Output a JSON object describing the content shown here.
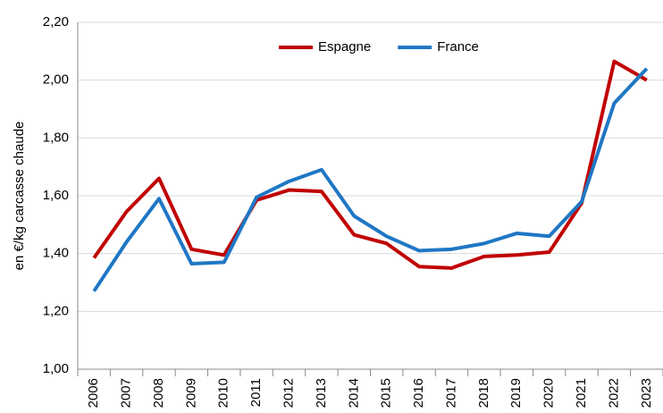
{
  "chart_data": {
    "type": "line",
    "y_label": "en €/kg carcasse chaude",
    "categories": [
      "2006",
      "2007",
      "2008",
      "2009",
      "2010",
      "2011",
      "2012",
      "2013",
      "2014",
      "2015",
      "2016",
      "2017",
      "2018",
      "2019",
      "2020",
      "2021",
      "2022",
      "2023"
    ],
    "series": [
      {
        "name": "Espagne",
        "color": "#c00000",
        "values": [
          1.385,
          1.545,
          1.66,
          1.415,
          1.395,
          1.585,
          1.62,
          1.615,
          1.465,
          1.435,
          1.355,
          1.35,
          1.39,
          1.395,
          1.405,
          1.575,
          2.065,
          2.0
        ]
      },
      {
        "name": "France",
        "color": "#1f77c4",
        "values": [
          1.27,
          1.44,
          1.59,
          1.365,
          1.37,
          1.595,
          1.65,
          1.69,
          1.53,
          1.46,
          1.41,
          1.415,
          1.435,
          1.47,
          1.46,
          1.58,
          1.92,
          2.04
        ]
      }
    ],
    "ylim": [
      1.0,
      2.2
    ],
    "yticks": [
      {
        "value": 1.0,
        "label": "1,00"
      },
      {
        "value": 1.2,
        "label": "1,20"
      },
      {
        "value": 1.4,
        "label": "1,40"
      },
      {
        "value": 1.6,
        "label": "1,60"
      },
      {
        "value": 1.8,
        "label": "1,80"
      },
      {
        "value": 2.0,
        "label": "2,00"
      },
      {
        "value": 2.2,
        "label": "2,20"
      }
    ],
    "grid": true,
    "legend": "top"
  }
}
